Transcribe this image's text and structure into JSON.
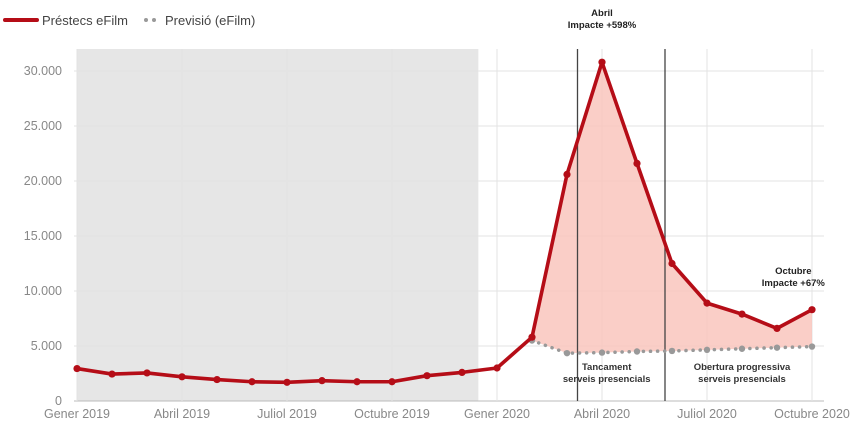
{
  "chart_data": {
    "type": "line",
    "legend": {
      "placement": "top-left",
      "items": [
        {
          "label": "Préstecs eFilm",
          "style": "solid",
          "color": "#b50d17"
        },
        {
          "label": "Previsió (eFilm)",
          "style": "dotted",
          "color": "#999999"
        }
      ]
    },
    "x_tick_labels": [
      "Gener 2019",
      "Abril 2019",
      "Juliol 2019",
      "Octubre 2019",
      "Gener 2020",
      "Abril 2020",
      "Juliol 2020",
      "Octubre 2020"
    ],
    "y_tick_labels": [
      "0",
      "5.000",
      "10.000",
      "15.000",
      "20.000",
      "25.000",
      "30.000"
    ],
    "ylim": [
      0,
      32000
    ],
    "grid": true,
    "series": [
      {
        "name": "Préstecs eFilm",
        "color": "#b50d17",
        "x": [
          "2019-01",
          "2019-02",
          "2019-03",
          "2019-04",
          "2019-05",
          "2019-06",
          "2019-07",
          "2019-08",
          "2019-09",
          "2019-10",
          "2019-11",
          "2019-12",
          "2020-01",
          "2020-02",
          "2020-03",
          "2020-04",
          "2020-05",
          "2020-06",
          "2020-07",
          "2020-08",
          "2020-09",
          "2020-10"
        ],
        "values": [
          2950,
          2450,
          2550,
          2200,
          1950,
          1750,
          1700,
          1850,
          1750,
          1750,
          2300,
          2600,
          3000,
          5800,
          20600,
          30800,
          21600,
          12500,
          8900,
          7900,
          6600,
          8300
        ]
      },
      {
        "name": "Previsió (eFilm)",
        "color": "#999999",
        "x": [
          "2020-02",
          "2020-03",
          "2020-04",
          "2020-05",
          "2020-06",
          "2020-07",
          "2020-08",
          "2020-09",
          "2020-10"
        ],
        "values": [
          5500,
          4350,
          4400,
          4500,
          4550,
          4650,
          4750,
          4850,
          4950
        ]
      }
    ],
    "shaded_period": {
      "start": "2019-01",
      "end": "2019-12-15",
      "color": "#e6e6e6"
    },
    "impact_fill_color": "#f9c6bd",
    "vertical_markers": [
      "2020-03-10",
      "2020-05-25"
    ],
    "annotations": [
      {
        "lines": [
          "Abril",
          "Impacte +598%"
        ],
        "x": "2020-04"
      },
      {
        "lines": [
          "Octubre",
          "Impacte +67%"
        ],
        "x": "2020-09-15"
      }
    ],
    "zones": [
      {
        "lines": [
          "Tancament",
          "serveis presencials"
        ],
        "x": "2020-04-05"
      },
      {
        "lines": [
          "Obertura progressiva",
          "serveis presencials"
        ],
        "x": "2020-08"
      }
    ]
  }
}
